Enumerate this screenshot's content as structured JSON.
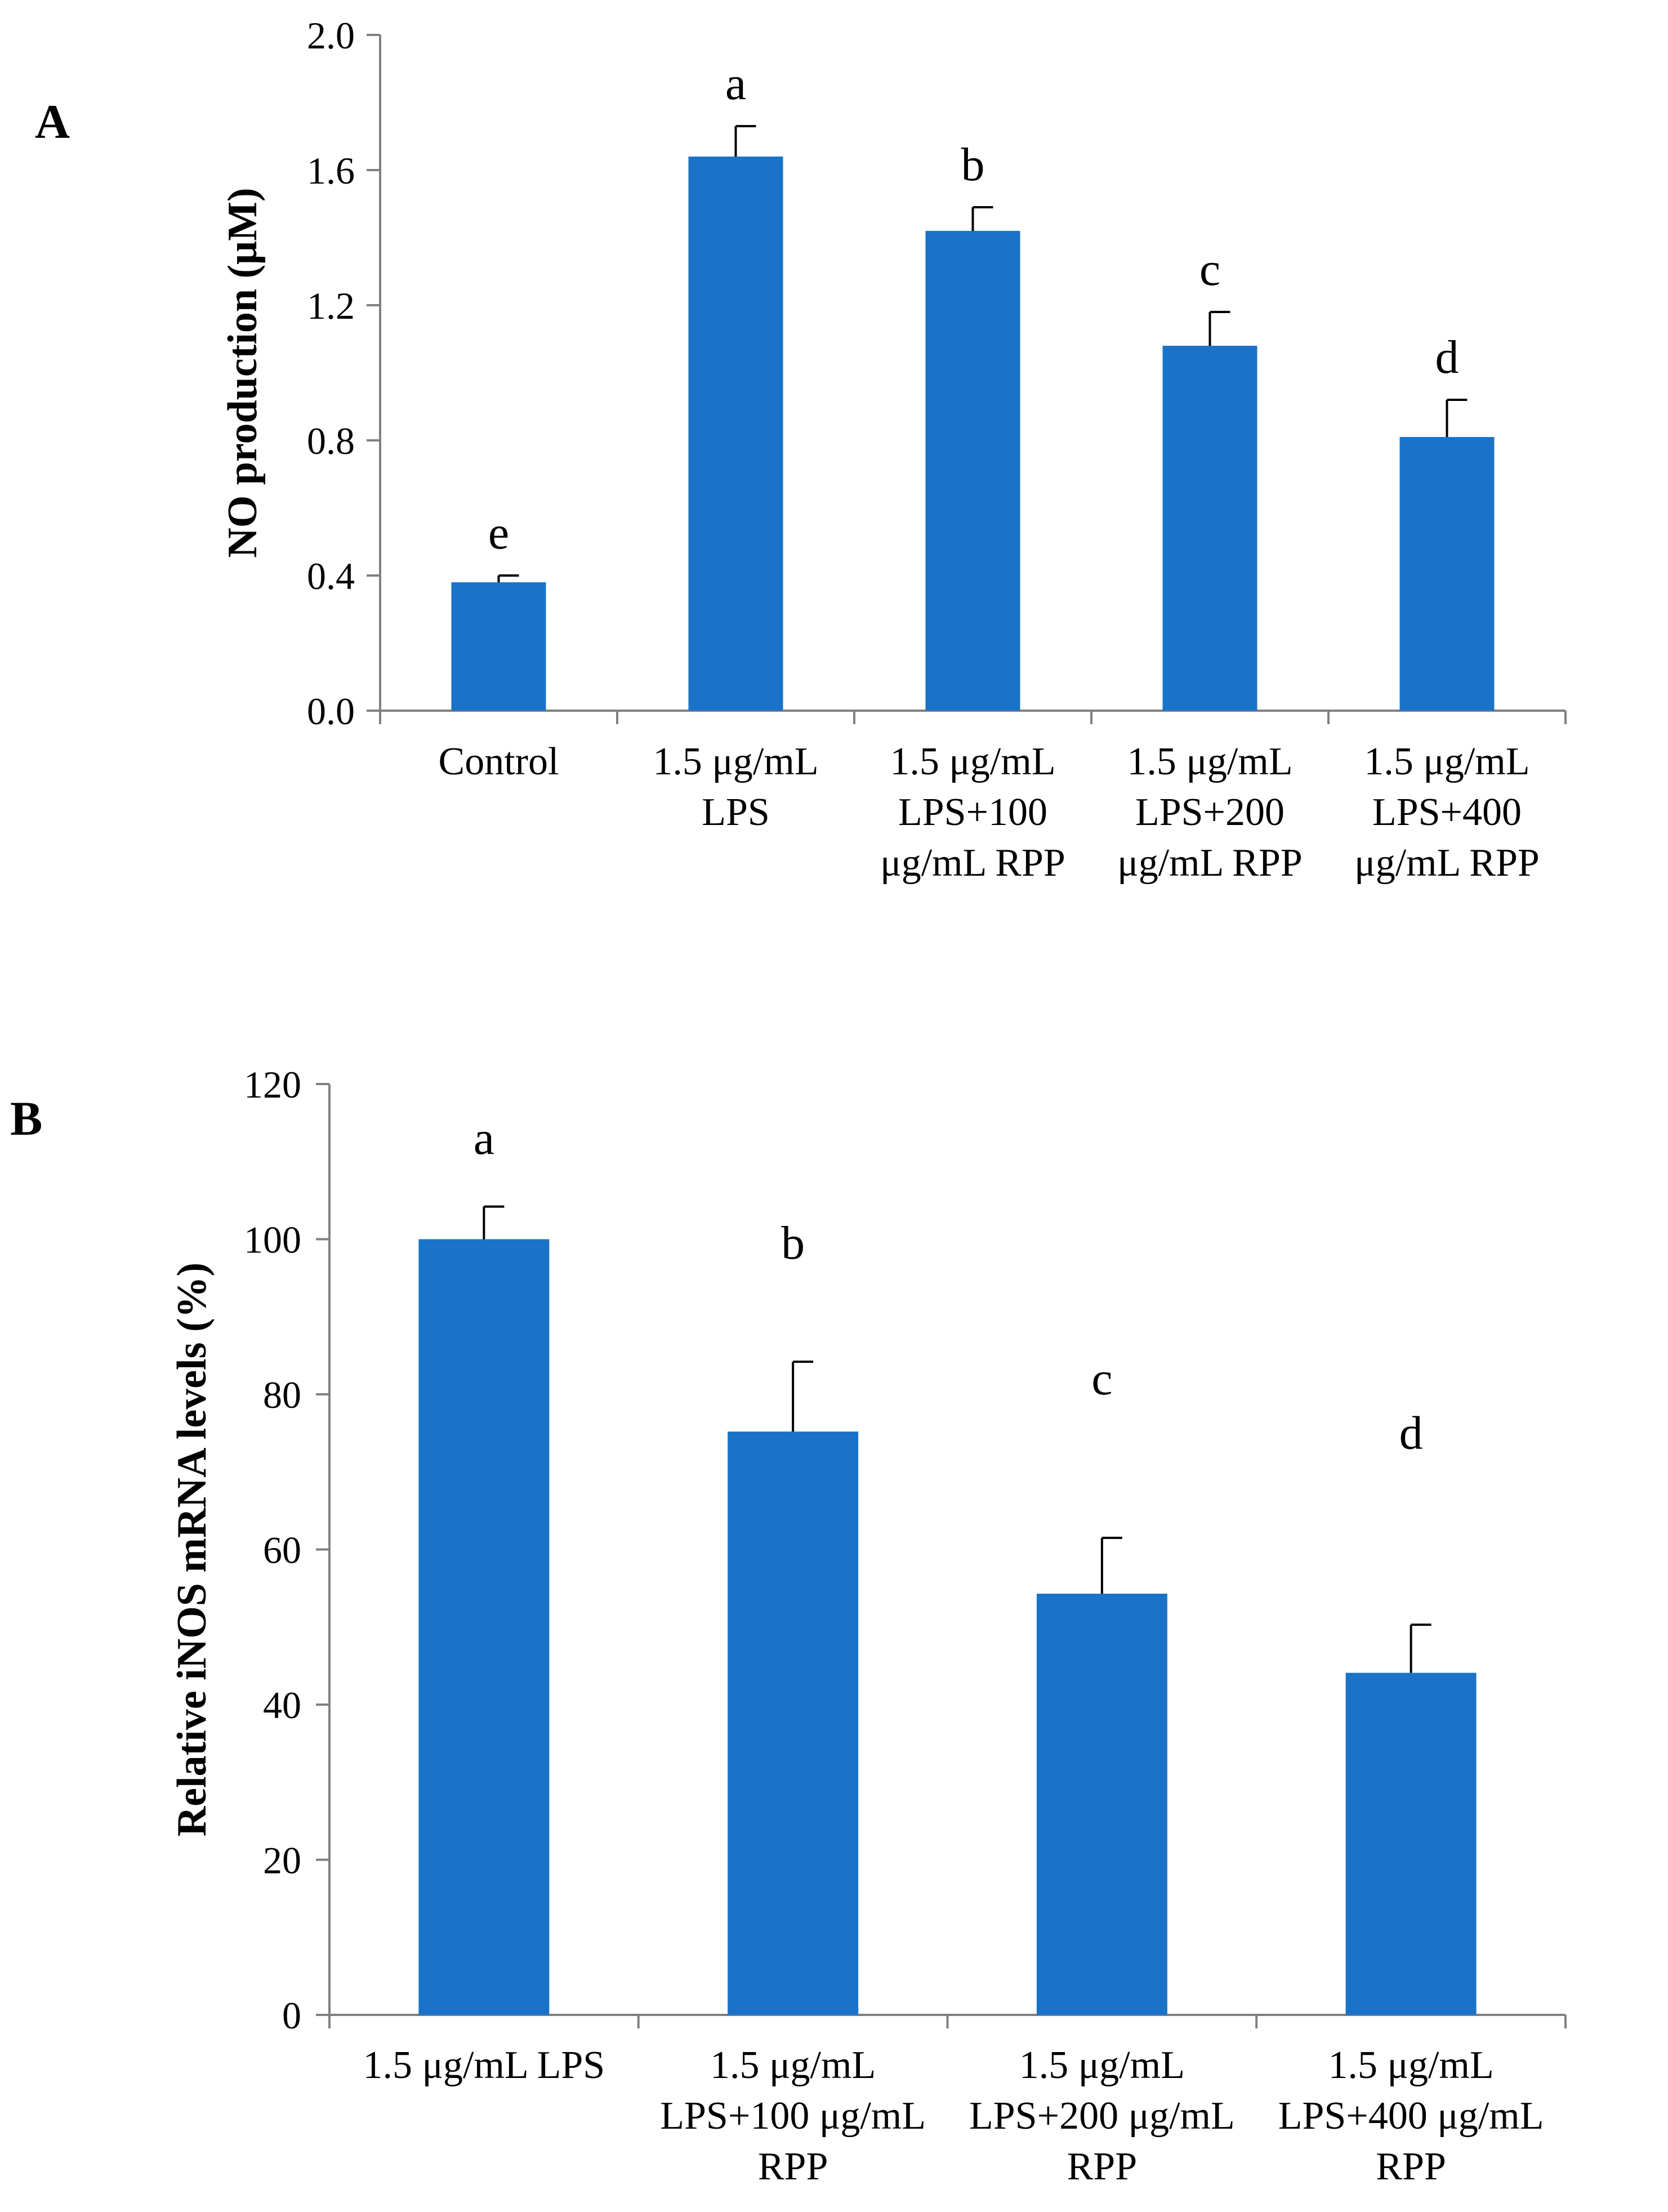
{
  "chart_data": [
    {
      "panel": "A",
      "type": "bar",
      "title": "",
      "xlabel": "",
      "ylabel": "NO production (μM)",
      "ylim": [
        0,
        2.0
      ],
      "yticks": [
        "0.0",
        "0.4",
        "0.8",
        "1.2",
        "1.6",
        "2.0"
      ],
      "ytick_values": [
        0,
        0.4,
        0.8,
        1.2,
        1.6,
        2.0
      ],
      "grid": false,
      "color": "#1a73c8",
      "categories": [
        [
          "Control"
        ],
        [
          "1.5 μg/mL",
          "LPS"
        ],
        [
          "1.5 μg/mL",
          "LPS+100",
          "μg/mL RPP"
        ],
        [
          "1.5 μg/mL",
          "LPS+200",
          "μg/mL RPP"
        ],
        [
          "1.5 μg/mL",
          "LPS+400",
          "μg/mL RPP"
        ]
      ],
      "values": [
        0.38,
        1.64,
        1.42,
        1.08,
        0.81
      ],
      "errors": [
        0.02,
        0.09,
        0.07,
        0.1,
        0.11
      ],
      "annotations": [
        "e",
        "a",
        "b",
        "c",
        "d"
      ]
    },
    {
      "panel": "B",
      "type": "bar",
      "title": "",
      "xlabel": "",
      "ylabel": "Relative iNOS mRNA levels (%)",
      "ylim": [
        0,
        120
      ],
      "yticks": [
        "0",
        "20",
        "40",
        "60",
        "80",
        "100",
        "120"
      ],
      "ytick_values": [
        0,
        20,
        40,
        60,
        80,
        100,
        120
      ],
      "grid": false,
      "color": "#1a73c8",
      "categories": [
        [
          "1.5 μg/mL LPS"
        ],
        [
          "1.5 μg/mL",
          "LPS+100 μg/mL",
          "RPP"
        ],
        [
          "1.5 μg/mL",
          "LPS+200 μg/mL",
          "RPP"
        ],
        [
          "1.5 μg/mL",
          "LPS+400 μg/mL",
          "RPP"
        ]
      ],
      "values": [
        100,
        75.2,
        54.3,
        44.1
      ],
      "errors": [
        4.2,
        9.0,
        7.2,
        6.2
      ],
      "annotations": [
        "a",
        "b",
        "c",
        "d"
      ],
      "annotation_values": [
        111,
        97.5,
        80,
        73
      ]
    }
  ]
}
